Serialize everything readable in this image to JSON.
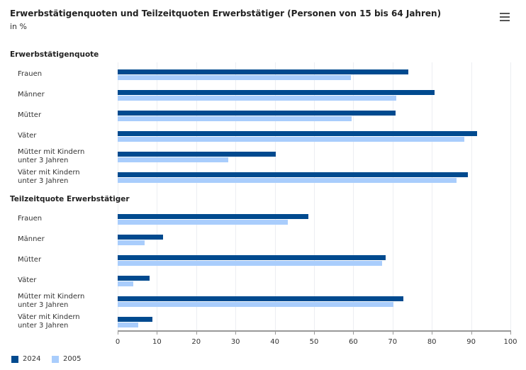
{
  "chart_data": {
    "type": "bar",
    "title": "Erwerbstätigenquoten und Teilzeitquoten Erwerbstätiger (Personen von 15 bis 64 Jahren)",
    "subtitle": "in %",
    "xlim": [
      0,
      100
    ],
    "ticks": [
      0,
      10,
      20,
      30,
      40,
      50,
      60,
      70,
      80,
      90,
      100
    ],
    "grid": true,
    "legend_position": "bottom-left",
    "series_meta": [
      {
        "name": "2024",
        "color": "#004a8f"
      },
      {
        "name": "2005",
        "color": "#a9cdfc"
      }
    ],
    "groups": [
      {
        "name": "Erwerbstätigenquote",
        "categories": [
          "Frauen",
          "Männer",
          "Mütter",
          "Väter",
          "Mütter mit Kindern\nunter 3 Jahren",
          "Väter mit Kindern\nunter 3 Jahren"
        ],
        "series": [
          {
            "name": "2024",
            "values": [
              74.0,
              80.7,
              70.8,
              91.6,
              40.3,
              89.2
            ]
          },
          {
            "name": "2005",
            "values": [
              59.4,
              71.0,
              59.5,
              88.2,
              28.2,
              86.3
            ]
          }
        ]
      },
      {
        "name": "Teilzeitquote Erwerbstätiger",
        "categories": [
          "Frauen",
          "Männer",
          "Mütter",
          "Väter",
          "Mütter mit Kindern\nunter 3 Jahren",
          "Väter mit Kindern\nunter 3 Jahren"
        ],
        "series": [
          {
            "name": "2024",
            "values": [
              48.5,
              11.5,
              68.2,
              8.2,
              72.7,
              8.8
            ]
          },
          {
            "name": "2005",
            "values": [
              43.3,
              6.8,
              67.3,
              3.9,
              70.2,
              5.2
            ]
          }
        ]
      }
    ]
  }
}
